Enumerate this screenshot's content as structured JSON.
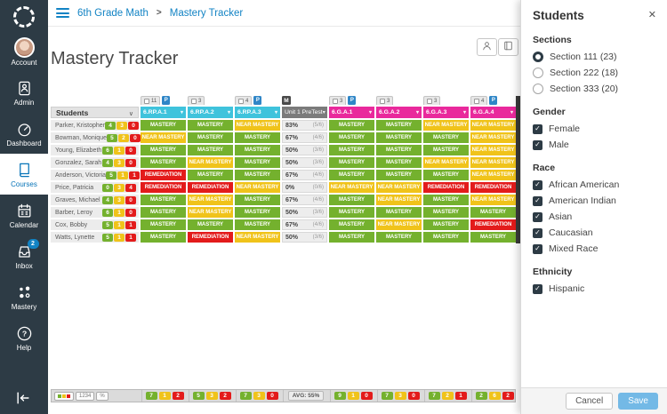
{
  "colors": {
    "navy": "#2d3b45",
    "link-blue": "#1283c4",
    "green": "#74b12e",
    "yellow": "#f0c31a",
    "red": "#e31b1b",
    "cyan": "#3fc3dc",
    "magenta": "#e9299c",
    "pin-blue": "#2f86c7",
    "assessment-gray": "#7b7b7b",
    "save-blue": "#73b9e6"
  },
  "sidebar": {
    "items": [
      {
        "label": "Account",
        "icon": "avatar"
      },
      {
        "label": "Admin",
        "icon": "admin"
      },
      {
        "label": "Dashboard",
        "icon": "dashboard"
      },
      {
        "label": "Courses",
        "icon": "courses",
        "active": true
      },
      {
        "label": "Calendar",
        "icon": "calendar"
      },
      {
        "label": "Inbox",
        "icon": "inbox",
        "badge": "2"
      },
      {
        "label": "Mastery",
        "icon": "mastery"
      },
      {
        "label": "Help",
        "icon": "help"
      }
    ]
  },
  "breadcrumb": {
    "course": "6th Grade Math",
    "separator": ">",
    "page": "Mastery Tracker"
  },
  "page_title": "Mastery Tracker",
  "toolbar": {
    "buttons": [
      {
        "icon": "person-icon"
      },
      {
        "icon": "book-icon"
      }
    ]
  },
  "grid": {
    "students_header": "Students",
    "pin_label": "P",
    "columns": [
      {
        "label": "6.RP.A.1",
        "type": "standard",
        "count": "11",
        "pinned": true,
        "color": "cyan"
      },
      {
        "label": "6.RP.A.2",
        "type": "standard",
        "count": "3",
        "pinned": false,
        "color": "cyan"
      },
      {
        "label": "6.RP.A.3",
        "type": "standard",
        "count": "4",
        "pinned": true,
        "color": "cyan"
      },
      {
        "label": "Unit 1 PreTest",
        "type": "assessment",
        "badge": "M"
      },
      {
        "label": "6.G.A.1",
        "type": "standard",
        "count": "3",
        "pinned": true,
        "color": "magenta"
      },
      {
        "label": "6.G.A.2",
        "type": "standard",
        "count": "3",
        "pinned": false,
        "color": "magenta"
      },
      {
        "label": "6.G.A.3",
        "type": "standard",
        "count": "3",
        "pinned": false,
        "color": "magenta"
      },
      {
        "label": "6.G.A.4",
        "type": "standard",
        "count": "4",
        "pinned": true,
        "color": "magenta"
      }
    ],
    "rows": [
      {
        "name": "Parker, Kristopher",
        "counts": [
          4,
          3,
          0
        ],
        "cells": [
          "MASTERY",
          "MASTERY",
          "NEAR MASTERY",
          {
            "pct": "83%",
            "frac": "(5/6)"
          },
          "MASTERY",
          "MASTERY",
          "NEAR MASTERY",
          "NEAR MASTERY"
        ]
      },
      {
        "name": "Bowman, Monique",
        "counts": [
          5,
          2,
          0
        ],
        "cells": [
          "NEAR MASTERY",
          "MASTERY",
          "MASTERY",
          {
            "pct": "67%",
            "frac": "(4/6)"
          },
          "MASTERY",
          "MASTERY",
          "MASTERY",
          "NEAR MASTERY"
        ]
      },
      {
        "name": "Young, Elizabeth",
        "counts": [
          6,
          1,
          0
        ],
        "cells": [
          "MASTERY",
          "MASTERY",
          "MASTERY",
          {
            "pct": "50%",
            "frac": "(3/6)"
          },
          "MASTERY",
          "MASTERY",
          "MASTERY",
          "NEAR MASTERY"
        ]
      },
      {
        "name": "Gonzalez, Sarah",
        "counts": [
          4,
          3,
          0
        ],
        "cells": [
          "MASTERY",
          "NEAR MASTERY",
          "MASTERY",
          {
            "pct": "50%",
            "frac": "(3/6)"
          },
          "MASTERY",
          "MASTERY",
          "NEAR MASTERY",
          "NEAR MASTERY"
        ]
      },
      {
        "name": "Anderson, Victoria",
        "counts": [
          5,
          1,
          1
        ],
        "cells": [
          "REMEDIATION",
          "MASTERY",
          "MASTERY",
          {
            "pct": "67%",
            "frac": "(4/6)"
          },
          "MASTERY",
          "MASTERY",
          "MASTERY",
          "NEAR MASTERY"
        ]
      },
      {
        "name": "Price, Patricia",
        "counts": [
          0,
          3,
          4
        ],
        "cells": [
          "REMEDIATION",
          "REMEDIATION",
          "NEAR MASTERY",
          {
            "pct": "0%",
            "frac": "(0/6)"
          },
          "NEAR MASTERY",
          "NEAR MASTERY",
          "REMEDIATION",
          "REMEDIATION"
        ]
      },
      {
        "name": "Graves, Michael",
        "counts": [
          4,
          3,
          0
        ],
        "cells": [
          "MASTERY",
          "NEAR MASTERY",
          "MASTERY",
          {
            "pct": "67%",
            "frac": "(4/6)"
          },
          "MASTERY",
          "NEAR MASTERY",
          "MASTERY",
          "NEAR MASTERY"
        ]
      },
      {
        "name": "Barber, Leroy",
        "counts": [
          6,
          1,
          0
        ],
        "cells": [
          "MASTERY",
          "NEAR MASTERY",
          "MASTERY",
          {
            "pct": "50%",
            "frac": "(3/6)"
          },
          "MASTERY",
          "MASTERY",
          "MASTERY",
          "MASTERY"
        ]
      },
      {
        "name": "Cox, Bobby",
        "counts": [
          5,
          1,
          1
        ],
        "cells": [
          "MASTERY",
          "MASTERY",
          "MASTERY",
          {
            "pct": "67%",
            "frac": "(4/6)"
          },
          "MASTERY",
          "NEAR MASTERY",
          "MASTERY",
          "REMEDIATION"
        ]
      },
      {
        "name": "Watts, Lynette",
        "counts": [
          5,
          1,
          1
        ],
        "cells": [
          "MASTERY",
          "REMEDIATION",
          "NEAR MASTERY",
          {
            "pct": "50%",
            "frac": "(3/6)"
          },
          "MASTERY",
          "MASTERY",
          "MASTERY",
          "MASTERY"
        ]
      }
    ],
    "footer": {
      "number_label": "1234",
      "percent_label": "%",
      "aggregates": [
        {
          "g": 7,
          "y": 1,
          "r": 2
        },
        {
          "g": 5,
          "y": 3,
          "r": 2
        },
        {
          "g": 7,
          "y": 3,
          "r": 0
        },
        {
          "avg": "AVG: 55%"
        },
        {
          "g": 9,
          "y": 1,
          "r": 0
        },
        {
          "g": 7,
          "y": 3,
          "r": 0
        },
        {
          "g": 7,
          "y": 2,
          "r": 1
        },
        {
          "g": 2,
          "y": 6,
          "r": 2
        }
      ]
    }
  },
  "panel": {
    "title": "Students",
    "close_glyph": "✕",
    "groups": [
      {
        "heading": "Sections",
        "type": "radio",
        "items": [
          {
            "label": "Section 111 (23)",
            "selected": true
          },
          {
            "label": "Section 222 (18)",
            "selected": false
          },
          {
            "label": "Section 333 (20)",
            "selected": false
          }
        ]
      },
      {
        "heading": "Gender",
        "type": "checkbox",
        "items": [
          {
            "label": "Female",
            "checked": true
          },
          {
            "label": "Male",
            "checked": true
          }
        ]
      },
      {
        "heading": "Race",
        "type": "checkbox",
        "items": [
          {
            "label": "African American",
            "checked": true
          },
          {
            "label": "American Indian",
            "checked": true
          },
          {
            "label": "Asian",
            "checked": true
          },
          {
            "label": "Caucasian",
            "checked": true
          },
          {
            "label": "Mixed Race",
            "checked": true
          }
        ]
      },
      {
        "heading": "Ethnicity",
        "type": "checkbox",
        "items": [
          {
            "label": "Hispanic",
            "checked": true
          }
        ]
      }
    ],
    "cancel_label": "Cancel",
    "save_label": "Save"
  }
}
